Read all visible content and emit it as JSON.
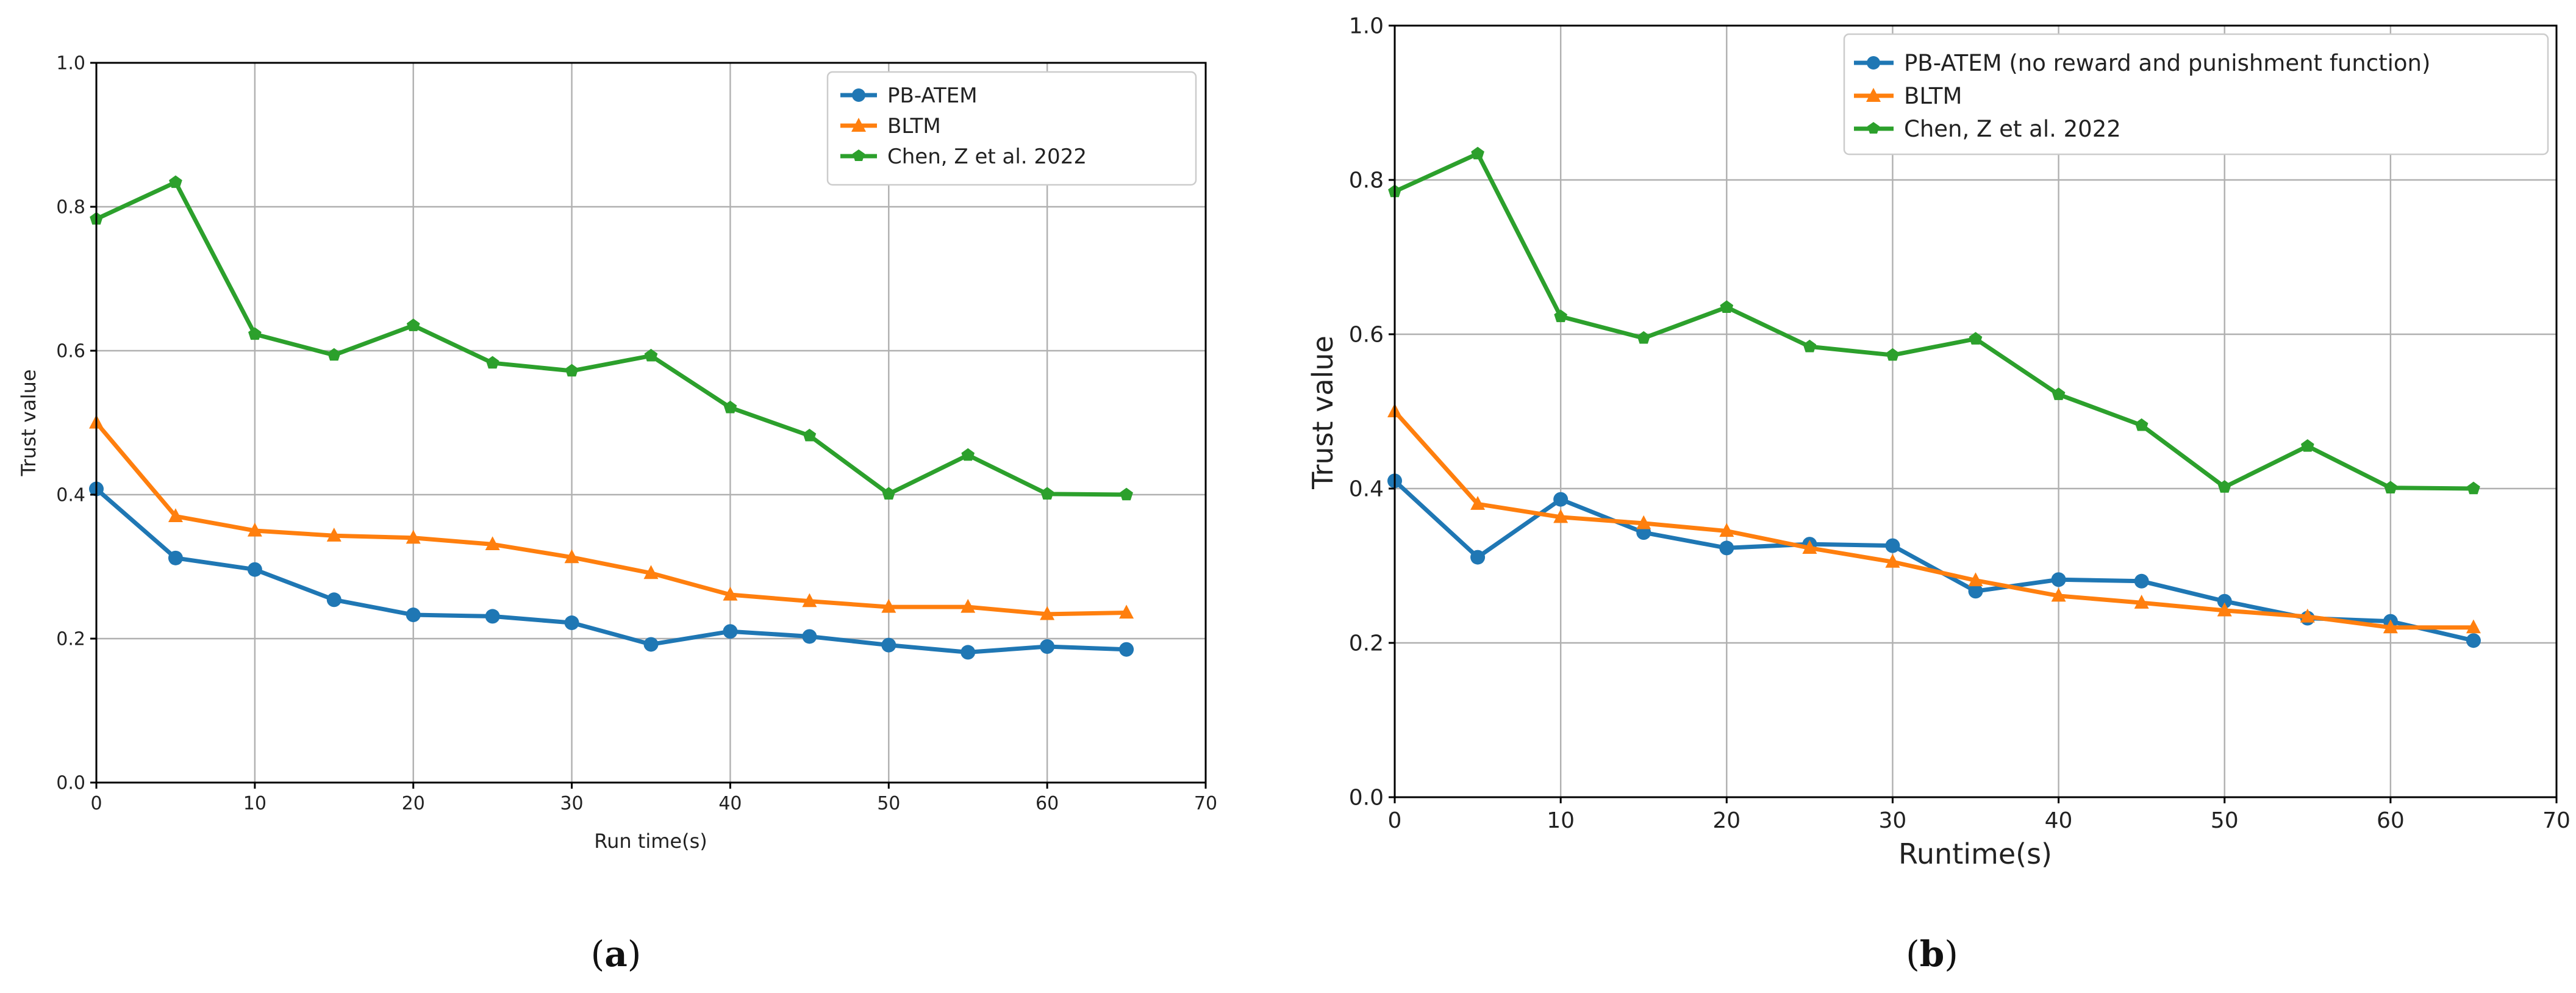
{
  "colors": {
    "blue": "#1f77b4",
    "orange": "#ff7f0e",
    "green": "#2ca02c"
  },
  "chart_data": [
    {
      "id": "a",
      "type": "line",
      "caption_letter": "a",
      "xlabel": "Run time(s)",
      "ylabel": "Trust value",
      "xlim": [
        0,
        70
      ],
      "ylim": [
        0.0,
        1.0
      ],
      "xticks": [
        0,
        10,
        20,
        30,
        40,
        50,
        60,
        70
      ],
      "yticks": [
        0.0,
        0.2,
        0.4,
        0.6,
        0.8,
        1.0
      ],
      "grid": true,
      "legend_position": "top-right",
      "x": [
        0,
        5,
        10,
        15,
        20,
        25,
        30,
        35,
        40,
        45,
        50,
        55,
        60,
        65
      ],
      "series": [
        {
          "name": "PB-ATEM",
          "color": "#1f77b4",
          "marker": "circle",
          "values": [
            0.408,
            0.312,
            0.296,
            0.254,
            0.233,
            0.231,
            0.222,
            0.192,
            0.21,
            0.203,
            0.191,
            0.181,
            0.189,
            0.185
          ]
        },
        {
          "name": "BLTM",
          "color": "#ff7f0e",
          "marker": "triangle",
          "values": [
            0.5,
            0.37,
            0.35,
            0.343,
            0.34,
            0.331,
            0.313,
            0.291,
            0.261,
            0.252,
            0.244,
            0.244,
            0.234,
            0.236
          ]
        },
        {
          "name": "Chen, Z et al. 2022",
          "color": "#2ca02c",
          "marker": "pentagon",
          "values": [
            0.783,
            0.834,
            0.623,
            0.594,
            0.635,
            0.583,
            0.572,
            0.593,
            0.521,
            0.482,
            0.401,
            0.455,
            0.401,
            0.4
          ]
        }
      ]
    },
    {
      "id": "b",
      "type": "line",
      "caption_letter": "b",
      "xlabel": "Runtime(s)",
      "ylabel": "Trust value",
      "xlim": [
        0,
        70
      ],
      "ylim": [
        0.0,
        1.0
      ],
      "xticks": [
        0,
        10,
        20,
        30,
        40,
        50,
        60,
        70
      ],
      "yticks": [
        0.0,
        0.2,
        0.4,
        0.6,
        0.8,
        1.0
      ],
      "grid": true,
      "legend_position": "top-right",
      "x": [
        0,
        5,
        10,
        15,
        20,
        25,
        30,
        35,
        40,
        45,
        50,
        55,
        60,
        65
      ],
      "series": [
        {
          "name": "PB-ATEM (no reward and punishment function)",
          "color": "#1f77b4",
          "marker": "circle",
          "values": [
            0.41,
            0.311,
            0.386,
            0.343,
            0.323,
            0.328,
            0.326,
            0.267,
            0.282,
            0.28,
            0.254,
            0.232,
            0.228,
            0.203
          ]
        },
        {
          "name": "BLTM",
          "color": "#ff7f0e",
          "marker": "triangle",
          "values": [
            0.5,
            0.38,
            0.363,
            0.355,
            0.345,
            0.323,
            0.305,
            0.281,
            0.261,
            0.252,
            0.242,
            0.234,
            0.22,
            0.22
          ]
        },
        {
          "name": "Chen, Z et al. 2022",
          "color": "#2ca02c",
          "marker": "pentagon",
          "values": [
            0.785,
            0.834,
            0.623,
            0.595,
            0.635,
            0.584,
            0.573,
            0.594,
            0.522,
            0.482,
            0.402,
            0.455,
            0.401,
            0.4
          ]
        }
      ]
    }
  ]
}
